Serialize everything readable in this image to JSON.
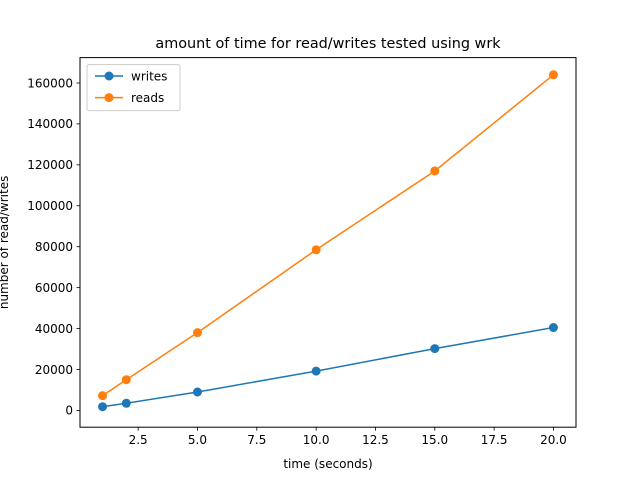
{
  "chart_data": {
    "type": "line",
    "title": "amount of time for read/writes tested using wrk",
    "xlabel": "time (seconds)",
    "ylabel": "number of read/writes",
    "xlim": [
      0.05,
      20.95
    ],
    "ylim": [
      -8200,
      172400
    ],
    "xticks": [
      2.5,
      5.0,
      7.5,
      10.0,
      12.5,
      15.0,
      17.5,
      20.0
    ],
    "xtick_labels": [
      "2.5",
      "5.0",
      "7.5",
      "10.0",
      "12.5",
      "15.0",
      "17.5",
      "20.0"
    ],
    "yticks": [
      0,
      20000,
      40000,
      60000,
      80000,
      100000,
      120000,
      140000,
      160000
    ],
    "ytick_labels": [
      "0",
      "20000",
      "40000",
      "60000",
      "80000",
      "100000",
      "120000",
      "140000",
      "160000"
    ],
    "grid": false,
    "legend_position": "upper-left",
    "series": [
      {
        "name": "writes",
        "color": "#1f77b4",
        "marker": "circle",
        "x": [
          1,
          2,
          5,
          10,
          15,
          20
        ],
        "y": [
          1800,
          3500,
          9000,
          19200,
          30200,
          40500
        ]
      },
      {
        "name": "reads",
        "color": "#ff7f0e",
        "marker": "circle",
        "x": [
          1,
          2,
          5,
          10,
          15,
          20
        ],
        "y": [
          7200,
          15000,
          38000,
          78500,
          117000,
          164000
        ]
      }
    ]
  }
}
